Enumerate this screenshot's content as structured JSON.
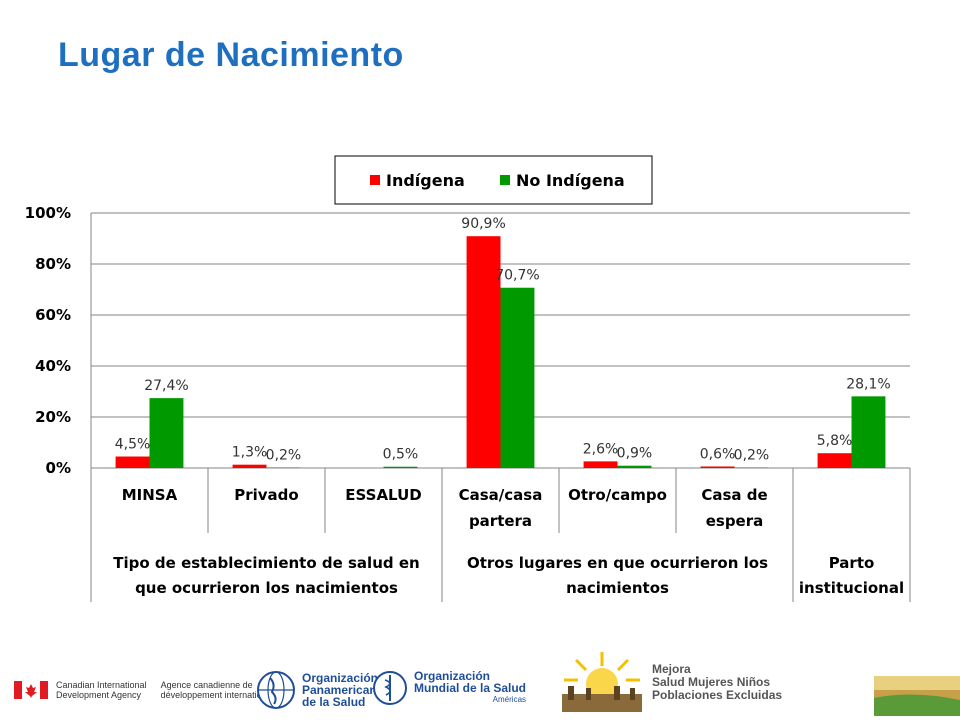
{
  "page": {
    "title": "Lugar de Nacimiento"
  },
  "chart_data": {
    "type": "bar",
    "categories": [
      "MINSA",
      "Privado",
      "ESSALUD",
      "Casa/casa partera",
      "Otro/campo",
      "Casa de espera",
      ""
    ],
    "groups": [
      {
        "label": "Tipo de establecimiento de salud en que ocurrieron los nacimientos",
        "span": [
          0,
          2
        ]
      },
      {
        "label": "Otros lugares en que ocurrieron los nacimientos",
        "span": [
          3,
          5
        ]
      },
      {
        "label": "Parto institucional",
        "span": [
          6,
          6
        ]
      }
    ],
    "series": [
      {
        "name": "Indígena",
        "color": "#ff0000",
        "values": [
          4.5,
          1.3,
          null,
          90.9,
          2.6,
          0.6,
          5.8
        ],
        "labels": [
          "4,5%",
          "1,3%",
          "",
          "90,9%",
          "2,6%",
          "0,6%",
          "5,8%"
        ]
      },
      {
        "name": "No Indígena",
        "color": "#009900",
        "values": [
          27.4,
          0.2,
          0.5,
          70.7,
          0.9,
          0.2,
          28.1
        ],
        "labels": [
          "27,4%",
          "0,2%",
          "0,5%",
          "70,7%",
          "0,9%",
          "0,2%",
          "28,1%"
        ]
      }
    ],
    "y_ticks": [
      "0%",
      "20%",
      "40%",
      "60%",
      "80%",
      "100%"
    ],
    "ylim": [
      0,
      100
    ],
    "grid": true,
    "legend_position": "top-center"
  },
  "footer": {
    "cida_line1": "Canadian International",
    "cida_line2": "Development Agency",
    "acdi_line1": "Agence canadienne de",
    "acdi_line2": "développement international",
    "paho_line1": "Organización",
    "paho_line2": "Panamericana",
    "paho_line3": "de la Salud",
    "who_line1": "Organización",
    "who_line2": "Mundial de la Salud",
    "who_line3": "Américas",
    "mejora_line1": "Mejora",
    "mejora_line2": "Salud Mujeres Niños",
    "mejora_line3": "Poblaciones Excluidas"
  }
}
